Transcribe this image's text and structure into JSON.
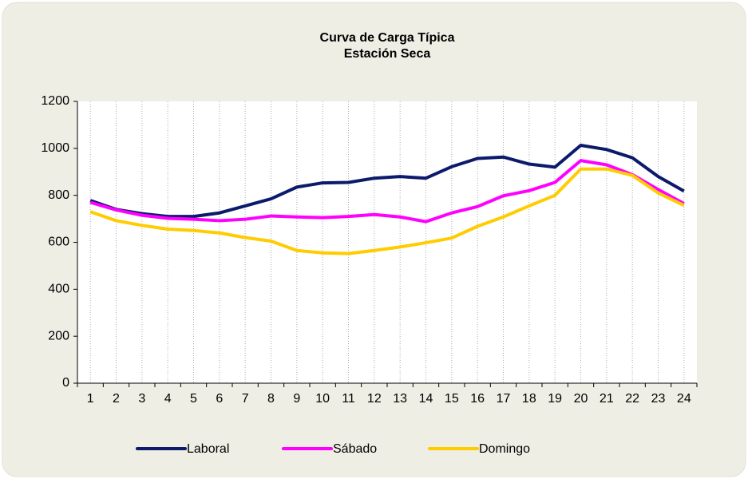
{
  "chart_data": {
    "type": "line",
    "title": "Curva de Carga Típica",
    "subtitle": "Estación Seca",
    "categories": [
      "1",
      "2",
      "3",
      "4",
      "5",
      "6",
      "7",
      "8",
      "9",
      "10",
      "11",
      "12",
      "13",
      "14",
      "15",
      "16",
      "17",
      "18",
      "19",
      "20",
      "21",
      "22",
      "23",
      "24"
    ],
    "series": [
      {
        "name": "Laboral",
        "color": "#0c1a6b",
        "values": [
          778,
          740,
          722,
          710,
          710,
          725,
          755,
          785,
          835,
          853,
          855,
          873,
          880,
          873,
          922,
          957,
          963,
          933,
          920,
          1013,
          995,
          960,
          880,
          818
        ]
      },
      {
        "name": "Sábado",
        "color": "#ff00ff",
        "values": [
          770,
          738,
          715,
          702,
          698,
          692,
          698,
          712,
          708,
          705,
          710,
          718,
          708,
          688,
          725,
          752,
          798,
          820,
          855,
          948,
          930,
          888,
          825,
          765
        ]
      },
      {
        "name": "Domingo",
        "color": "#ffcc00",
        "values": [
          730,
          692,
          672,
          656,
          650,
          640,
          620,
          605,
          565,
          555,
          552,
          565,
          580,
          598,
          618,
          668,
          708,
          755,
          800,
          912,
          912,
          885,
          810,
          757
        ]
      }
    ],
    "ylim": [
      0,
      1200
    ],
    "yticks": [
      0,
      200,
      400,
      600,
      800,
      1000,
      1200
    ],
    "grid": "x",
    "legend": "bottom"
  }
}
